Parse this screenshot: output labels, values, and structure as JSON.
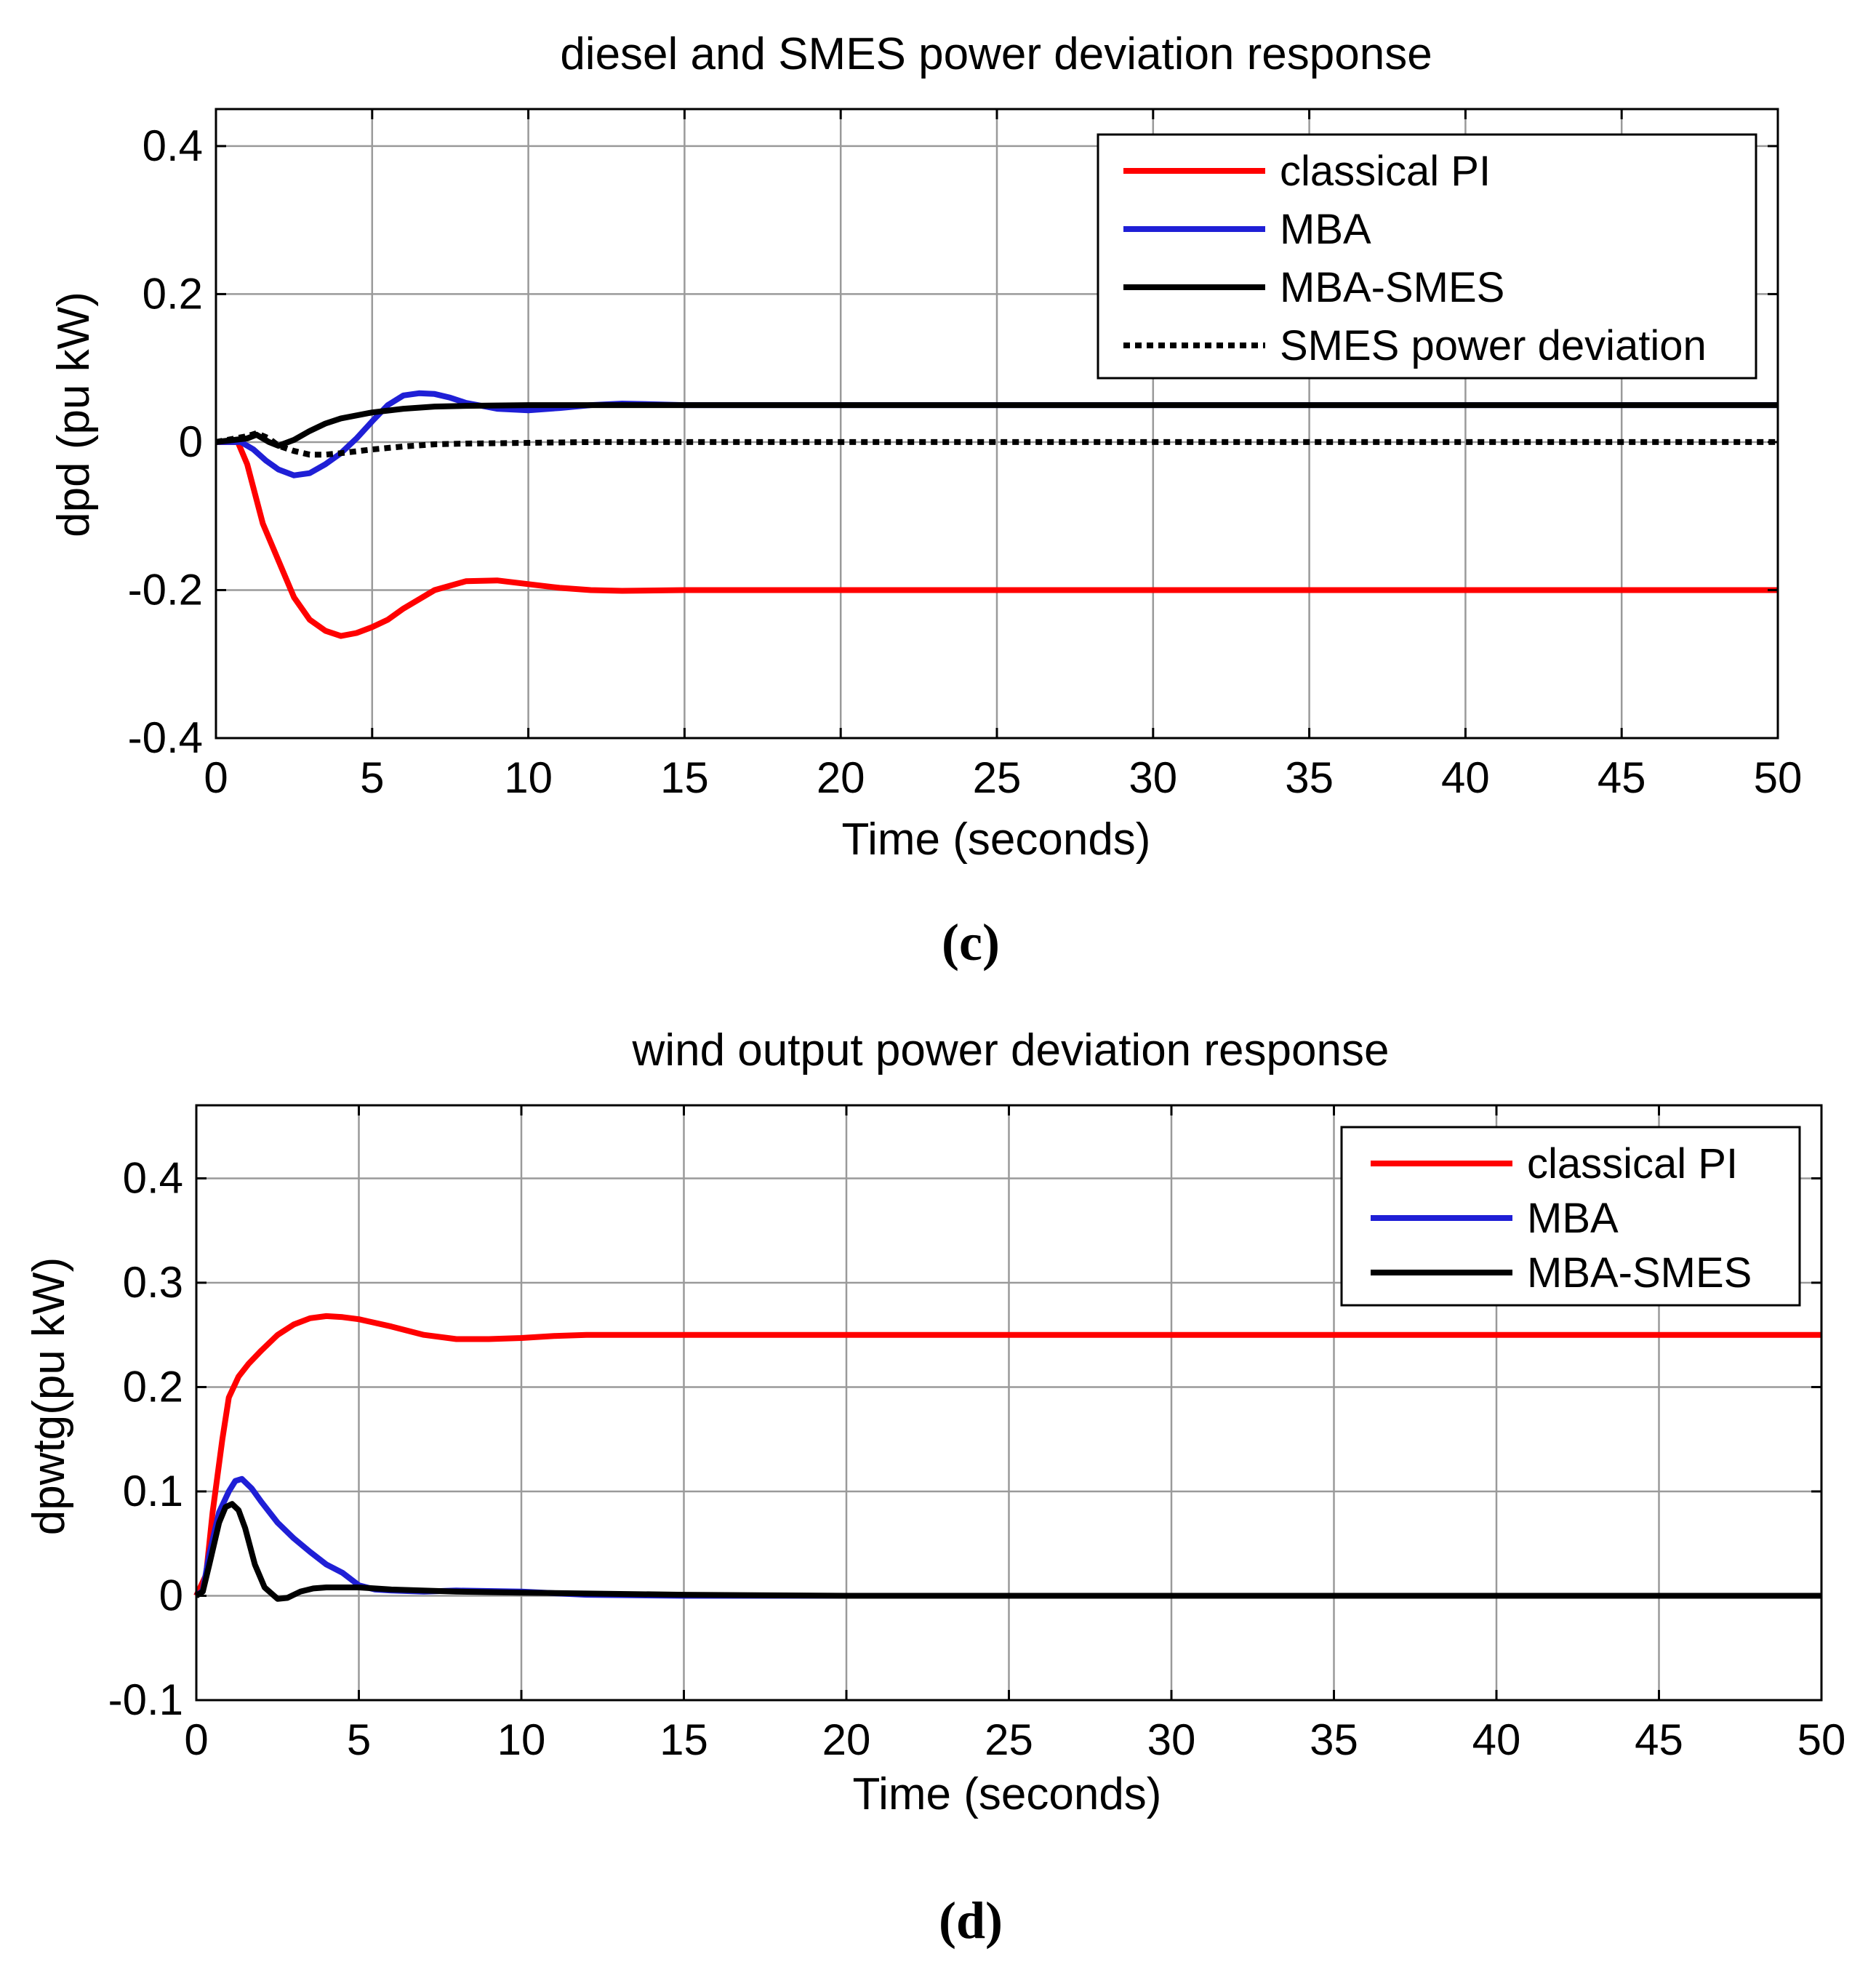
{
  "chart_data": [
    {
      "id": "c",
      "type": "line",
      "title": "diesel and SMES power deviation response",
      "xlabel": "Time (seconds)",
      "ylabel": "dpd (pu kW)",
      "caption_letter": "c",
      "xlim": [
        0,
        50
      ],
      "ylim": [
        -0.4,
        0.45
      ],
      "xticks": [
        0,
        5,
        10,
        15,
        20,
        25,
        30,
        35,
        40,
        45,
        50
      ],
      "yticks": [
        -0.4,
        -0.2,
        0,
        0.2,
        0.4
      ],
      "ytick_labels": [
        "-0.4",
        "-0.2",
        "0",
        "0.2",
        "0.4"
      ],
      "grid": true,
      "legend_position": "top-right",
      "series": [
        {
          "name": "classical PI",
          "color": "#ff0000",
          "dash": "solid",
          "x": [
            0,
            0.7,
            1,
            1.5,
            2,
            2.5,
            3,
            3.5,
            4,
            4.5,
            5,
            5.5,
            6,
            7,
            8,
            9,
            10,
            11,
            12,
            13,
            15,
            20,
            30,
            40,
            50
          ],
          "y": [
            0,
            0,
            -0.03,
            -0.11,
            -0.16,
            -0.21,
            -0.24,
            -0.255,
            -0.262,
            -0.258,
            -0.25,
            -0.24,
            -0.225,
            -0.2,
            -0.188,
            -0.187,
            -0.192,
            -0.197,
            -0.2,
            -0.201,
            -0.2,
            -0.2,
            -0.2,
            -0.2,
            -0.2
          ]
        },
        {
          "name": "MBA",
          "color": "#1f1fd6",
          "dash": "solid",
          "x": [
            0,
            0.8,
            1.2,
            1.6,
            2,
            2.5,
            3,
            3.5,
            4,
            4.5,
            5,
            5.5,
            6,
            6.5,
            7,
            7.5,
            8,
            9,
            10,
            11,
            12,
            13,
            14,
            15,
            20,
            30,
            40,
            50
          ],
          "y": [
            0,
            0,
            -0.01,
            -0.025,
            -0.037,
            -0.045,
            -0.042,
            -0.03,
            -0.015,
            0.005,
            0.028,
            0.05,
            0.063,
            0.066,
            0.065,
            0.06,
            0.053,
            0.045,
            0.043,
            0.046,
            0.05,
            0.052,
            0.051,
            0.05,
            0.05,
            0.05,
            0.05,
            0.05
          ]
        },
        {
          "name": "MBA-SMES",
          "color": "#000000",
          "dash": "solid",
          "x": [
            0,
            1,
            1.3,
            1.7,
            2,
            2.5,
            3,
            3.5,
            4,
            5,
            6,
            7,
            8,
            10,
            12,
            15,
            20,
            30,
            40,
            50
          ],
          "y": [
            0,
            0.005,
            0.01,
            0.0,
            -0.005,
            0.003,
            0.015,
            0.025,
            0.032,
            0.04,
            0.045,
            0.048,
            0.049,
            0.05,
            0.05,
            0.05,
            0.05,
            0.05,
            0.05,
            0.05
          ]
        },
        {
          "name": "SMES power deviation",
          "color": "#000000",
          "dash": "dotted",
          "x": [
            0,
            1,
            1.3,
            1.7,
            2,
            2.5,
            3,
            3.5,
            4,
            5,
            6,
            7,
            8,
            10,
            12,
            15,
            20,
            30,
            40,
            50
          ],
          "y": [
            0,
            0.008,
            0.012,
            0.005,
            -0.005,
            -0.012,
            -0.017,
            -0.017,
            -0.015,
            -0.01,
            -0.006,
            -0.003,
            -0.002,
            -0.001,
            0,
            0,
            0,
            0,
            0,
            0
          ]
        }
      ]
    },
    {
      "id": "d",
      "type": "line",
      "title": "wind output power deviation response",
      "xlabel": "Time (seconds)",
      "ylabel": "dpwtg(pu kW)",
      "caption_letter": "d",
      "xlim": [
        0,
        50
      ],
      "ylim": [
        -0.1,
        0.47
      ],
      "xticks": [
        0,
        5,
        10,
        15,
        20,
        25,
        30,
        35,
        40,
        45,
        50
      ],
      "yticks": [
        -0.1,
        0,
        0.1,
        0.2,
        0.3,
        0.4
      ],
      "ytick_labels": [
        "-0.1",
        "0",
        "0.1",
        "0.2",
        "0.3",
        "0.4"
      ],
      "grid": true,
      "legend_position": "top-right",
      "series": [
        {
          "name": "classical PI",
          "color": "#ff0000",
          "dash": "solid",
          "x": [
            0,
            0.3,
            0.5,
            0.8,
            1,
            1.3,
            1.6,
            2,
            2.5,
            3,
            3.5,
            4,
            4.5,
            5,
            6,
            7,
            8,
            9,
            10,
            11,
            12,
            15,
            20,
            30,
            40,
            50
          ],
          "y": [
            0,
            0.02,
            0.08,
            0.15,
            0.19,
            0.21,
            0.222,
            0.235,
            0.25,
            0.26,
            0.266,
            0.268,
            0.267,
            0.265,
            0.258,
            0.25,
            0.246,
            0.246,
            0.247,
            0.249,
            0.25,
            0.25,
            0.25,
            0.25,
            0.25,
            0.25
          ]
        },
        {
          "name": "MBA",
          "color": "#1f1fd6",
          "dash": "solid",
          "x": [
            0,
            0.2,
            0.4,
            0.7,
            1,
            1.2,
            1.4,
            1.7,
            2,
            2.5,
            3,
            3.5,
            4,
            4.5,
            5,
            5.5,
            6,
            7,
            8,
            10,
            12,
            15,
            20,
            30,
            40,
            50
          ],
          "y": [
            0,
            0.005,
            0.04,
            0.08,
            0.1,
            0.11,
            0.112,
            0.103,
            0.09,
            0.07,
            0.055,
            0.042,
            0.03,
            0.022,
            0.01,
            0.006,
            0.005,
            0.004,
            0.005,
            0.004,
            0.001,
            0,
            0,
            0,
            0,
            0
          ]
        },
        {
          "name": "MBA-SMES",
          "color": "#000000",
          "dash": "solid",
          "x": [
            0,
            0.2,
            0.4,
            0.7,
            0.9,
            1.1,
            1.3,
            1.5,
            1.8,
            2.1,
            2.5,
            2.8,
            3.2,
            3.6,
            4,
            5,
            6,
            8,
            10,
            15,
            20,
            30,
            40,
            50
          ],
          "y": [
            0,
            0.004,
            0.03,
            0.07,
            0.085,
            0.088,
            0.082,
            0.065,
            0.03,
            0.008,
            -0.003,
            -0.002,
            0.004,
            0.007,
            0.008,
            0.008,
            0.006,
            0.004,
            0.003,
            0.001,
            0,
            0,
            0,
            0
          ]
        }
      ]
    }
  ]
}
